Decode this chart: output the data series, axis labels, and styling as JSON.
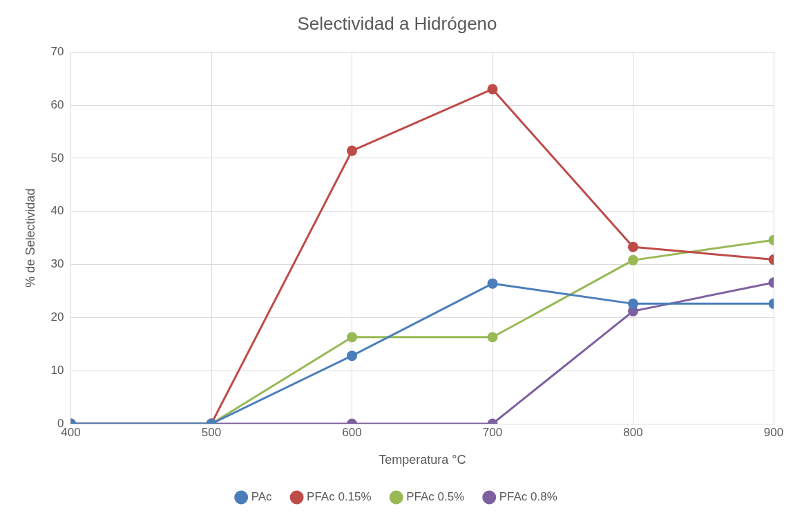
{
  "chart_data": {
    "type": "line",
    "title": "Selectividad a Hidrógeno",
    "xlabel": "Temperatura °C",
    "ylabel": "% de Selectividad",
    "x": [
      400,
      500,
      600,
      700,
      800,
      900
    ],
    "series": [
      {
        "name": "PAc",
        "color": "#4a7ebb",
        "values": [
          0,
          0,
          12.8,
          26.4,
          22.6,
          22.6
        ]
      },
      {
        "name": "PFAc 0.15%",
        "color": "#be4b48",
        "values": [
          0,
          0,
          51.4,
          63.0,
          33.3,
          30.9
        ]
      },
      {
        "name": "PFAc 0.5%",
        "color": "#98b954",
        "values": [
          0,
          0,
          16.3,
          16.3,
          30.8,
          34.6
        ]
      },
      {
        "name": "PFAc 0.8%",
        "color": "#7d60a0",
        "values": [
          0,
          0,
          0,
          0,
          21.2,
          26.6
        ]
      }
    ],
    "xlim": [
      400,
      900
    ],
    "xticks": [
      400,
      500,
      600,
      700,
      800,
      900
    ],
    "ylim": [
      0,
      70
    ],
    "yticks": [
      0,
      10,
      20,
      30,
      40,
      50,
      60,
      70
    ],
    "grid": true,
    "legend": "bottom",
    "marker": "circle",
    "line_style": "solid"
  }
}
